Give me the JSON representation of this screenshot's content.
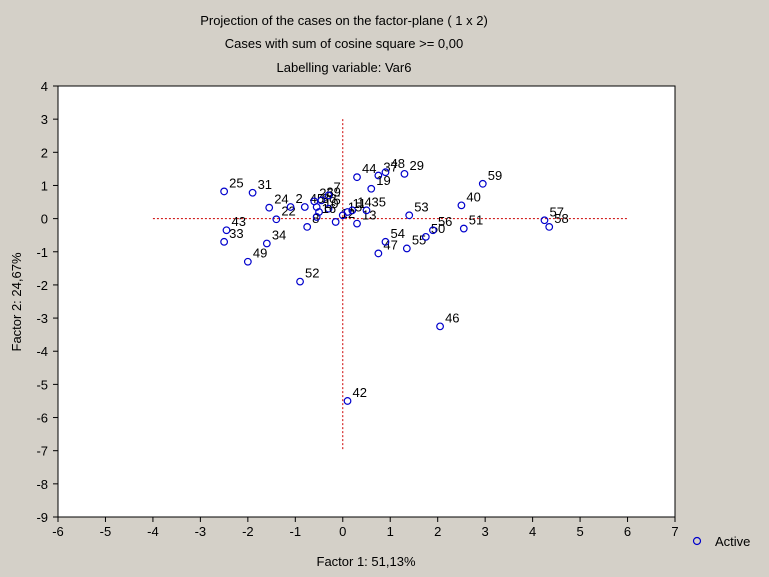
{
  "chart_data": {
    "type": "scatter",
    "title": [
      "Projection of the cases on the factor-plane (  1 x   2)",
      "Cases with sum of cosine square >=  0,00",
      "Labelling variable: Var6"
    ],
    "xlabel": "Factor 1: 51,13%",
    "ylabel": "Factor 2: 24,67%",
    "xlim": [
      -6,
      7
    ],
    "ylim": [
      -9,
      4
    ],
    "x_ticks": [
      "-6",
      "-5",
      "-4",
      "-3",
      "-2",
      "-1",
      "0",
      "1",
      "2",
      "3",
      "4",
      "5",
      "6",
      "7"
    ],
    "y_ticks": [
      "4",
      "3",
      "2",
      "1",
      "0",
      "-1",
      "-2",
      "-3",
      "-4",
      "-5",
      "-6",
      "-7",
      "-8",
      "-9"
    ],
    "grid": false,
    "reference_lines": {
      "x": 0,
      "y": 0,
      "x_range": [
        -4,
        6
      ],
      "y_range": [
        -7,
        3
      ],
      "color": "#cc0000"
    },
    "legend": {
      "placement": "bottom-right",
      "entries": [
        "Active"
      ]
    },
    "series": [
      {
        "name": "Active",
        "color": "#0000cc",
        "marker": "open-circle",
        "points": [
          {
            "x": -2.5,
            "y": 0.82,
            "label": "25"
          },
          {
            "x": -1.9,
            "y": 0.78,
            "label": "31"
          },
          {
            "x": -1.55,
            "y": 0.33,
            "label": "24"
          },
          {
            "x": -1.4,
            "y": -0.02,
            "label": "22"
          },
          {
            "x": -2.45,
            "y": -0.35,
            "label": "43"
          },
          {
            "x": -2.5,
            "y": -0.7,
            "label": "33"
          },
          {
            "x": -1.6,
            "y": -0.75,
            "label": "34"
          },
          {
            "x": -2.0,
            "y": -1.3,
            "label": "49"
          },
          {
            "x": -0.9,
            "y": -1.9,
            "label": "52"
          },
          {
            "x": -1.1,
            "y": 0.35,
            "label": "2"
          },
          {
            "x": -0.8,
            "y": 0.35,
            "label": "45"
          },
          {
            "x": -0.6,
            "y": 0.52,
            "label": "26"
          },
          {
            "x": -0.45,
            "y": 0.55,
            "label": "39"
          },
          {
            "x": -0.55,
            "y": 0.35,
            "label": "36"
          },
          {
            "x": -0.5,
            "y": 0.2,
            "label": "10"
          },
          {
            "x": -0.75,
            "y": -0.25,
            "label": "8"
          },
          {
            "x": -0.3,
            "y": 0.7,
            "label": "7"
          },
          {
            "x": -0.3,
            "y": 0.3,
            "label": "5"
          },
          {
            "x": -0.55,
            "y": 0.05,
            "label": "16"
          },
          {
            "x": -0.15,
            "y": -0.1,
            "label": "12"
          },
          {
            "x": 0.0,
            "y": 0.1,
            "label": "15"
          },
          {
            "x": 0.1,
            "y": 0.2,
            "label": "11"
          },
          {
            "x": 0.2,
            "y": 0.25,
            "label": "14"
          },
          {
            "x": 0.3,
            "y": -0.15,
            "label": "13"
          },
          {
            "x": 0.5,
            "y": 0.25,
            "label": "35"
          },
          {
            "x": 0.3,
            "y": 1.25,
            "label": "44"
          },
          {
            "x": 0.75,
            "y": 1.3,
            "label": "37"
          },
          {
            "x": 0.9,
            "y": 1.4,
            "label": "48"
          },
          {
            "x": 1.3,
            "y": 1.35,
            "label": "29"
          },
          {
            "x": 0.6,
            "y": 0.9,
            "label": "19"
          },
          {
            "x": 1.4,
            "y": 0.1,
            "label": "53"
          },
          {
            "x": 0.75,
            "y": -1.05,
            "label": "47"
          },
          {
            "x": 0.9,
            "y": -0.7,
            "label": "54"
          },
          {
            "x": 1.35,
            "y": -0.9,
            "label": "55"
          },
          {
            "x": 1.75,
            "y": -0.55,
            "label": "50"
          },
          {
            "x": 1.9,
            "y": -0.35,
            "label": "56"
          },
          {
            "x": 2.5,
            "y": 0.4,
            "label": "40"
          },
          {
            "x": 2.55,
            "y": -0.3,
            "label": "51"
          },
          {
            "x": 2.95,
            "y": 1.05,
            "label": "59"
          },
          {
            "x": 4.25,
            "y": -0.05,
            "label": "57"
          },
          {
            "x": 4.35,
            "y": -0.25,
            "label": "58"
          },
          {
            "x": 2.05,
            "y": -3.25,
            "label": "46"
          },
          {
            "x": 0.1,
            "y": -5.5,
            "label": "42"
          }
        ]
      }
    ]
  }
}
